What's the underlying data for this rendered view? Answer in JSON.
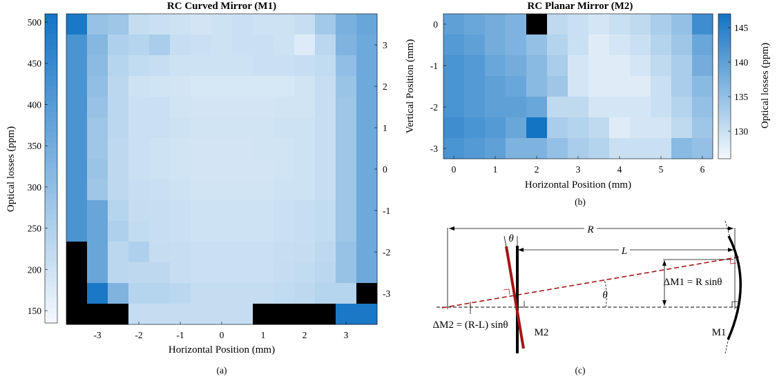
{
  "figure": {
    "panel_labels": [
      "(a)",
      "(b)",
      "(c)"
    ]
  },
  "chart_data": [
    {
      "type": "heatmap",
      "title": "RC Curved Mirror (M1)",
      "xlabel": "Horizontal Position (mm)",
      "ylabel": "",
      "colorbar_label": "Optical losses (ppm)",
      "x_tick_labels": [
        "-3",
        "-2",
        "-1",
        "0",
        "1",
        "2",
        "3"
      ],
      "y_tick_labels": [
        "3",
        "2",
        "1",
        "0",
        "-1",
        "-2",
        "-3"
      ],
      "colorbar_tick_labels": [
        "500",
        "450",
        "400",
        "350",
        "300",
        "250",
        "200",
        "150"
      ],
      "colorbar_range": [
        135,
        510
      ],
      "xlim": [
        -3.75,
        3.75
      ],
      "ylim": [
        -3.75,
        3.75
      ],
      "x_centers": [
        -3.5,
        -3,
        -2.5,
        -2,
        -1.5,
        -1,
        -0.5,
        0,
        0.5,
        1,
        1.5,
        2,
        2.5,
        3,
        3.5
      ],
      "y_centers": [
        3.5,
        3,
        2.5,
        2,
        1.5,
        1,
        0.5,
        0,
        -0.5,
        -1,
        -1.5,
        -2,
        -2.5,
        -3,
        -3.5
      ],
      "missing_color": "#000000",
      "colormap": [
        "#f4f9fd",
        "#1474c4"
      ],
      "values": [
        [
          500,
          290,
          280,
          215,
          205,
          200,
          190,
          200,
          205,
          200,
          200,
          210,
          270,
          340,
          370
        ],
        [
          420,
          320,
          250,
          240,
          260,
          210,
          205,
          200,
          205,
          205,
          200,
          175,
          230,
          330,
          360
        ],
        [
          420,
          310,
          240,
          220,
          210,
          200,
          200,
          200,
          200,
          205,
          205,
          210,
          220,
          300,
          360
        ],
        [
          420,
          300,
          230,
          200,
          195,
          190,
          185,
          185,
          185,
          185,
          185,
          195,
          210,
          285,
          360
        ],
        [
          420,
          290,
          230,
          205,
          205,
          195,
          190,
          190,
          190,
          190,
          195,
          195,
          210,
          280,
          360
        ],
        [
          420,
          280,
          230,
          205,
          205,
          200,
          195,
          195,
          195,
          195,
          200,
          200,
          210,
          280,
          360
        ],
        [
          420,
          280,
          225,
          205,
          200,
          195,
          190,
          190,
          190,
          195,
          195,
          200,
          210,
          280,
          360
        ],
        [
          420,
          285,
          225,
          205,
          200,
          195,
          190,
          190,
          190,
          190,
          195,
          200,
          210,
          280,
          360
        ],
        [
          420,
          280,
          225,
          210,
          205,
          200,
          195,
          195,
          195,
          195,
          200,
          200,
          210,
          280,
          360
        ],
        [
          420,
          370,
          240,
          215,
          210,
          205,
          200,
          200,
          200,
          200,
          205,
          210,
          220,
          280,
          360
        ],
        [
          420,
          370,
          250,
          220,
          210,
          205,
          200,
          200,
          200,
          200,
          205,
          210,
          220,
          280,
          360
        ],
        [
          null,
          370,
          230,
          250,
          215,
          210,
          205,
          205,
          205,
          205,
          210,
          215,
          225,
          290,
          360
        ],
        [
          null,
          370,
          230,
          225,
          225,
          210,
          205,
          205,
          205,
          205,
          215,
          220,
          230,
          290,
          360
        ],
        [
          null,
          500,
          330,
          240,
          240,
          230,
          215,
          215,
          215,
          215,
          220,
          225,
          240,
          240,
          null
        ],
        [
          null,
          null,
          null,
          215,
          215,
          215,
          215,
          215,
          215,
          null,
          null,
          null,
          null,
          500,
          500
        ]
      ]
    },
    {
      "type": "heatmap",
      "title": "RC Planar Mirror (M2)",
      "xlabel": "Horizontal Position (mm)",
      "ylabel": "Vertical Position (mm)",
      "colorbar_label": "Optical losses (ppm)",
      "x_tick_labels": [
        "0",
        "1",
        "2",
        "3",
        "4",
        "5",
        "6"
      ],
      "y_tick_labels": [
        "0",
        "-1",
        "-2",
        "-3"
      ],
      "colorbar_tick_labels": [
        "145",
        "140",
        "135",
        "130"
      ],
      "colorbar_range": [
        126,
        147
      ],
      "xlim": [
        -0.25,
        6.25
      ],
      "ylim": [
        -3.25,
        0.25
      ],
      "x_centers": [
        0,
        0.5,
        1,
        1.5,
        2,
        2.5,
        3,
        3.5,
        4,
        4.5,
        5,
        5.5,
        6
      ],
      "y_centers": [
        0,
        -0.5,
        -1,
        -1.5,
        -2,
        -2.5,
        -3
      ],
      "missing_color": "#000000",
      "colormap": [
        "#f4f9fd",
        "#1474c4"
      ],
      "values": [
        [
          140,
          139,
          138,
          137,
          null,
          131,
          130,
          129,
          130,
          131,
          133,
          135,
          143
        ],
        [
          141,
          140,
          138,
          137,
          135,
          132,
          130,
          128,
          129,
          130,
          132,
          134,
          139
        ],
        [
          142,
          141,
          139,
          138,
          136,
          133,
          129,
          128,
          128,
          129,
          131,
          133,
          138
        ],
        [
          142,
          141,
          140,
          139,
          136,
          134,
          129,
          128,
          128,
          128,
          130,
          133,
          136
        ],
        [
          142,
          141,
          140,
          140,
          139,
          131,
          131,
          129,
          129,
          129,
          130,
          132,
          135
        ],
        [
          143,
          142,
          141,
          139,
          148,
          133,
          132,
          131,
          128,
          129,
          129,
          131,
          134
        ],
        [
          142,
          141,
          140,
          137,
          137,
          135,
          133,
          132,
          130,
          130,
          130,
          136,
          135
        ]
      ]
    }
  ],
  "diagram": {
    "R_label": "R",
    "L_label": "L",
    "theta": "θ",
    "dM1_label": "ΔM1 = R sinθ",
    "dM2_label": "ΔM2 = (R-L) sinθ",
    "m1_label": "M1",
    "m2_label": "M2",
    "beam_color": "#a31515"
  }
}
